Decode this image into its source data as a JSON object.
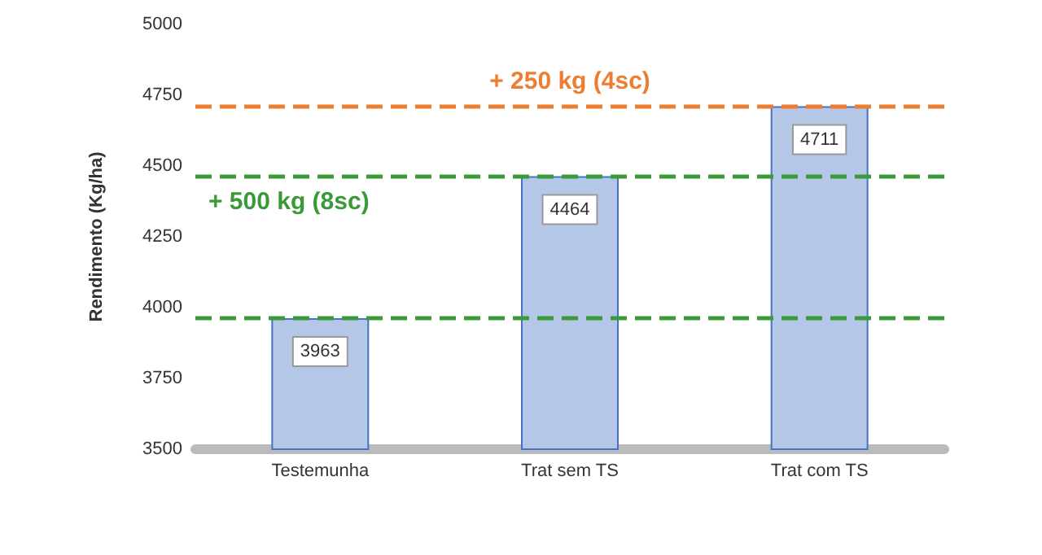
{
  "chart_data": {
    "type": "bar",
    "ylabel": "Rendimento (Kg/ha)",
    "categories": [
      "Testemunha",
      "Trat sem TS",
      "Trat com TS"
    ],
    "values": [
      3963,
      4464,
      4711
    ],
    "color": "#b4c7e7",
    "ylim": [
      3500,
      5000
    ],
    "yticks": [
      3500,
      3750,
      4000,
      4250,
      4500,
      4750,
      5000
    ],
    "grid": false,
    "data_labels": true,
    "ref_lines": [
      {
        "axis": "y",
        "value": 3963,
        "color": "#3a9a3a",
        "line_style": "dashed"
      },
      {
        "axis": "y",
        "value": 4464,
        "label": "+ 500 kg (8sc)",
        "color": "#3a9a3a",
        "line_style": "dashed"
      },
      {
        "axis": "y",
        "value": 4711,
        "label": "+ 250 kg (4sc)",
        "color": "#ed7d31",
        "line_style": "dashed"
      }
    ]
  }
}
